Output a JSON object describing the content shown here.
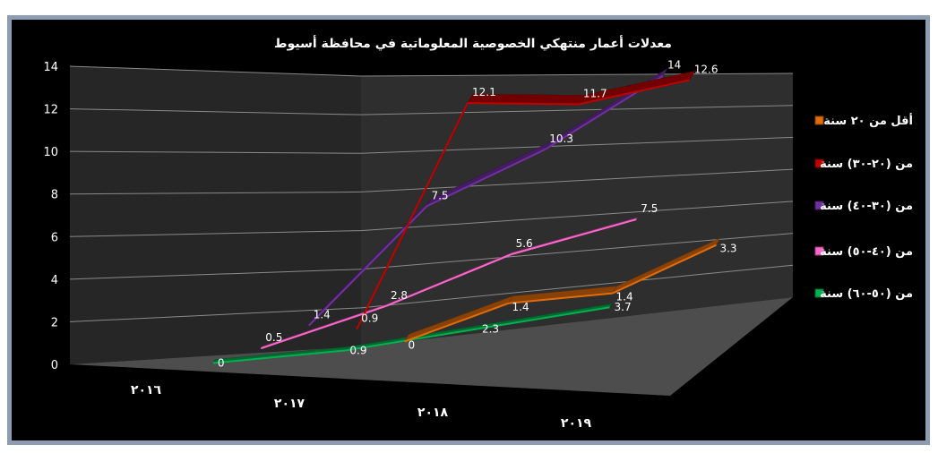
{
  "chart_data": {
    "type": "line",
    "title": "معدلات أعمار منتهكي الخصوصية المعلوماتية في محافظة أسيوط",
    "categories": [
      "٢٠١٦",
      "٢٠١٧",
      "٢٠١٨",
      "٢٠١٩"
    ],
    "ylim": [
      0,
      14
    ],
    "yticks": [
      "0",
      "2",
      "4",
      "6",
      "8",
      "10",
      "12",
      "14"
    ],
    "grid": true,
    "legend_position": "right",
    "three_d": true,
    "series": [
      {
        "name": "أقل من ٢٠ سنة",
        "values": [
          0,
          1.4,
          1.4,
          3.3
        ],
        "labels": [
          "0",
          "1.4",
          "1.4",
          "3.3"
        ],
        "color": "#e36c0a"
      },
      {
        "name": "من (٢٠-٣٠) سنة",
        "values": [
          0.9,
          12.1,
          11.7,
          12.6
        ],
        "labels": [
          "0.9",
          "12.1",
          "11.7",
          "12.6"
        ],
        "color": "#c00000"
      },
      {
        "name": "من (٣٠-٤٠) سنة",
        "values": [
          1.4,
          7.5,
          10.3,
          14
        ],
        "labels": [
          "1.4",
          "7.5",
          "10.3",
          "14"
        ],
        "color": "#7030a0"
      },
      {
        "name": "من (٤٠-٥٠) سنة",
        "values": [
          0.5,
          2.8,
          5.6,
          7.5
        ],
        "labels": [
          "0.5",
          "2.8",
          "5.6",
          "7.5"
        ],
        "color": "#ff66cc"
      },
      {
        "name": "من (٥٠-٦٠) سنة",
        "values": [
          0,
          0.9,
          2.3,
          3.7
        ],
        "labels": [
          "0",
          "0.9",
          "2.3",
          "3.7"
        ],
        "color": "#00b050"
      }
    ]
  }
}
